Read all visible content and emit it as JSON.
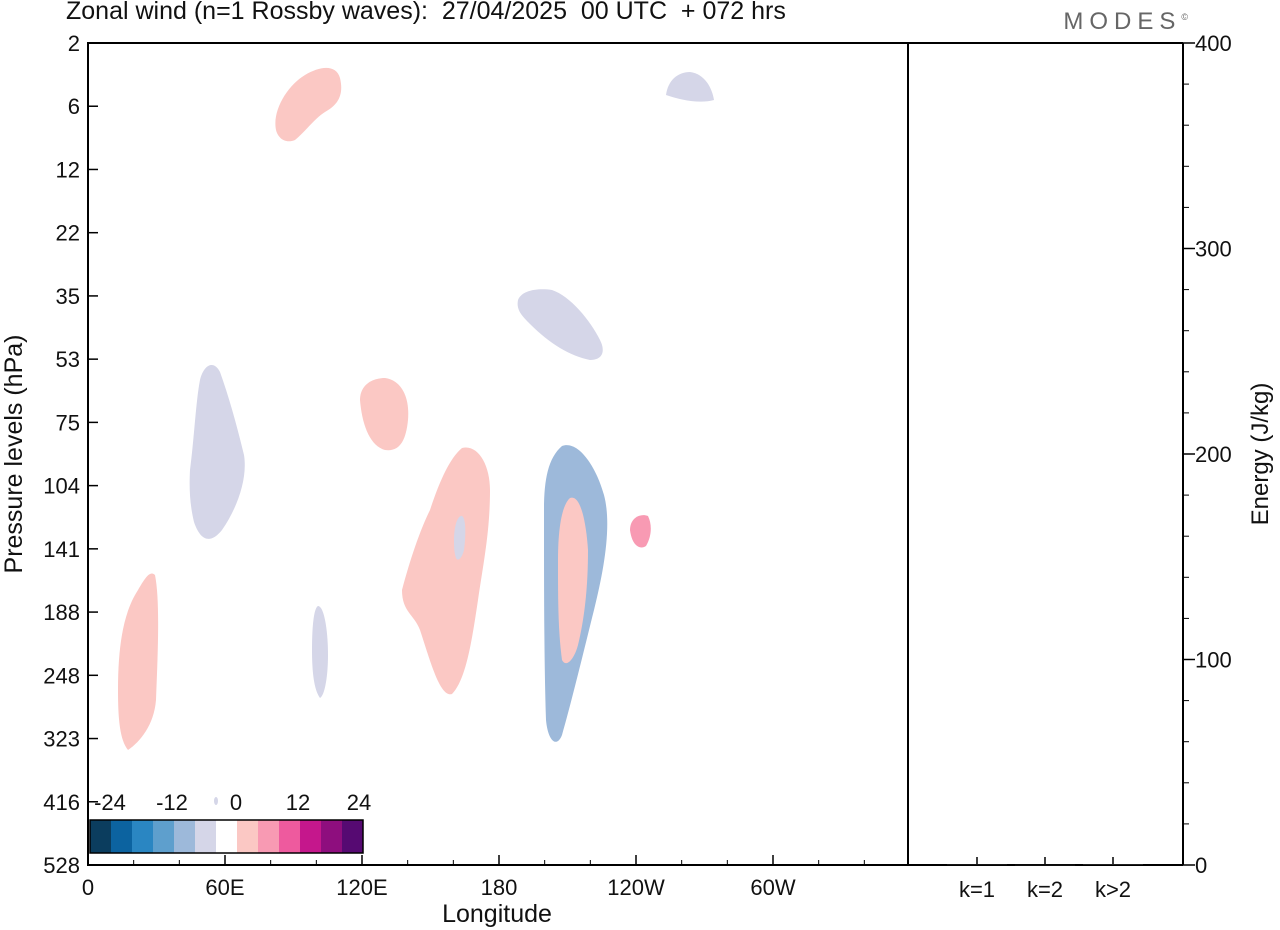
{
  "chart_data": {
    "type": "filled-contour",
    "title": "Zonal wind (n=1 Rossby waves):  27/04/2025  00 UTC  + 072 hrs",
    "logo": "MODES",
    "xlabel": "Longitude",
    "ylabel": "Pressure levels (hPa)",
    "x_ticks": [
      "0",
      "60E",
      "120E",
      "180",
      "120W",
      "60W"
    ],
    "y_ticks": [
      "2",
      "6",
      "12",
      "22",
      "35",
      "53",
      "75",
      "104",
      "141",
      "188",
      "248",
      "323",
      "416",
      "528"
    ],
    "energy_panel": {
      "ylabel": "Energy (J/kg)",
      "ylim": [
        0,
        400
      ],
      "y_ticks": [
        "0",
        "100",
        "200",
        "300",
        "400"
      ],
      "categories": [
        "k=1",
        "k=2",
        "k>2"
      ],
      "values": [
        0.2,
        0.1,
        0.3
      ]
    },
    "colorbar": {
      "labels": [
        "-24",
        "-12",
        "0",
        "12",
        "24"
      ],
      "colors": [
        "#0b3d5e",
        "#0c63a0",
        "#2a86c2",
        "#5e9fcd",
        "#9db9da",
        "#d5d6e8",
        "#ffffff",
        "#fbc8c4",
        "#f89ab3",
        "#ee5a9e",
        "#c5178c",
        "#8e0e7e",
        "#560a72"
      ]
    },
    "shapes": [
      {
        "sign": "positive",
        "level": 1,
        "color": "#fbc8c4"
      },
      {
        "sign": "negative",
        "level": 1,
        "color": "#d5d6e8"
      },
      {
        "sign": "positive",
        "level": 1,
        "color": "#fbc8c4"
      },
      {
        "sign": "negative",
        "level": 1,
        "color": "#d5d6e8"
      },
      {
        "sign": "positive",
        "level": 1,
        "color": "#fbc8c4"
      },
      {
        "sign": "negative",
        "level": 1,
        "color": "#d5d6e8"
      },
      {
        "sign": "negative",
        "level": 1,
        "color": "#d5d6e8"
      },
      {
        "sign": "positive",
        "level": 1,
        "color": "#fbc8c4"
      },
      {
        "sign": "negative",
        "level": 1,
        "color": "#d5d6e8"
      },
      {
        "sign": "negative",
        "level": 2,
        "color": "#9db9da"
      },
      {
        "sign": "positive",
        "level": 1,
        "color": "#fbc8c4"
      },
      {
        "sign": "positive",
        "level": 2,
        "color": "#f89ab3"
      },
      {
        "sign": "positive",
        "level": 1,
        "color": "#fbc8c4"
      }
    ]
  }
}
